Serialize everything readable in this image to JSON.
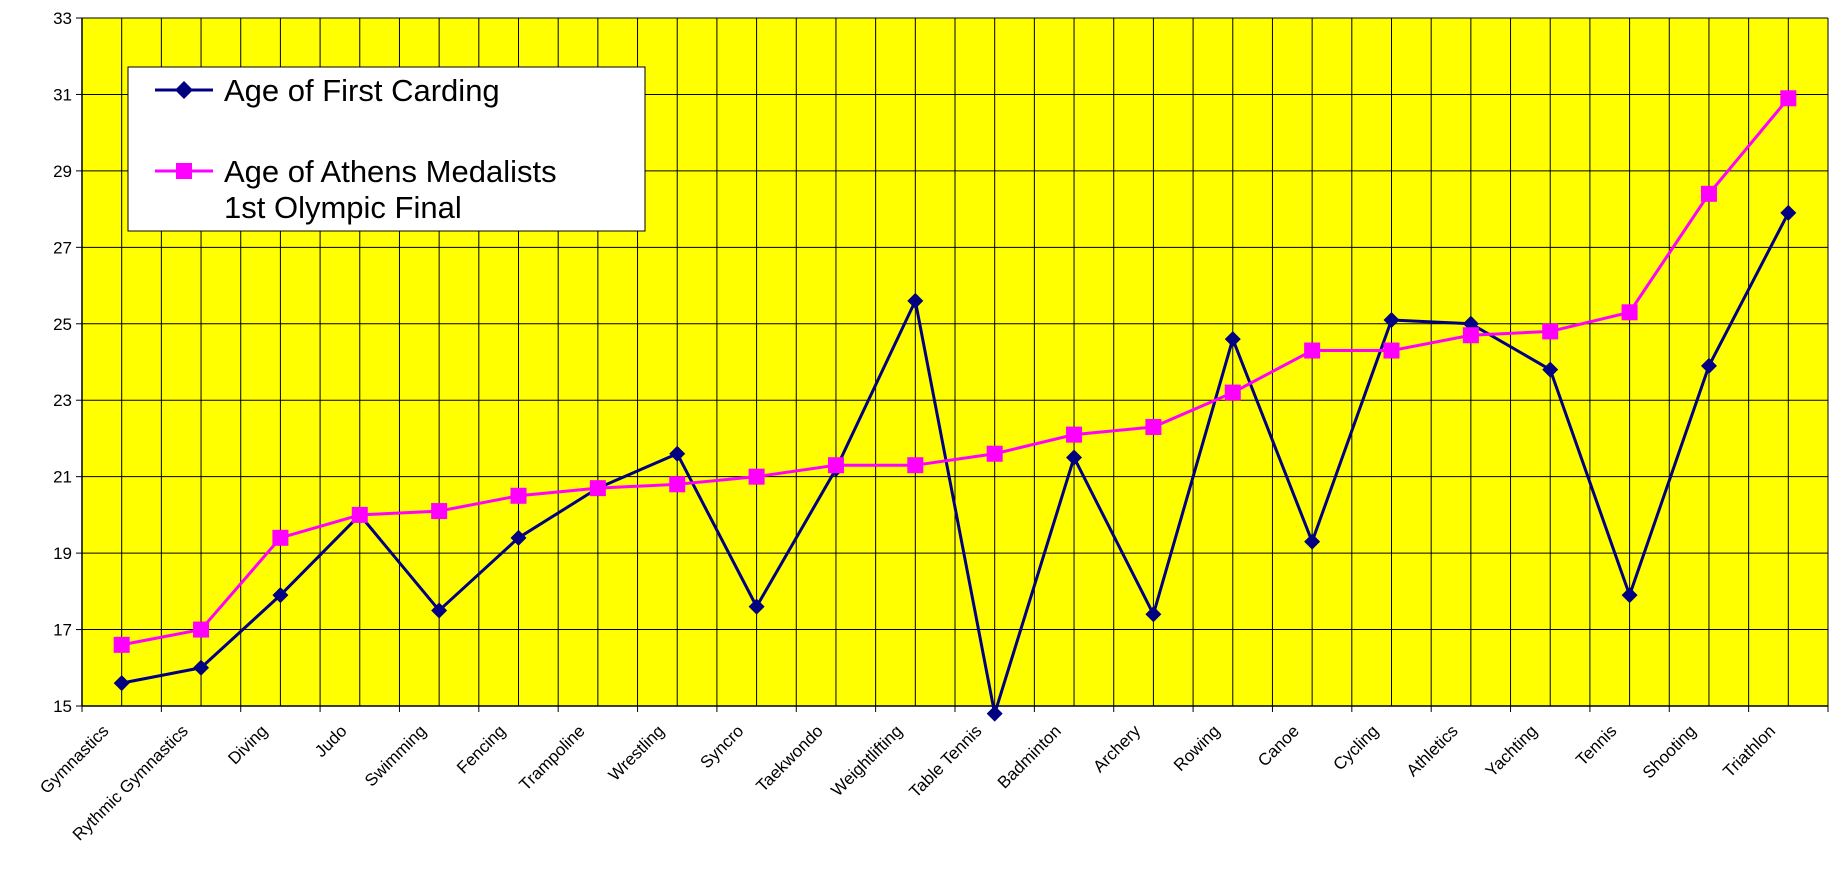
{
  "chart_data": {
    "type": "line",
    "title": "",
    "xlabel": "",
    "ylabel": "",
    "ylim": [
      15,
      33
    ],
    "yticks": [
      15,
      17,
      19,
      21,
      23,
      25,
      27,
      29,
      31,
      33
    ],
    "grid": true,
    "legend_position": "top-left",
    "plot_background": "#FFFF00",
    "categories": [
      "Gymnastics",
      "Rythmic Gymnastics",
      "Diving",
      "Judo",
      "Swimming",
      "Fencing",
      "Trampoline",
      "Wrestling",
      "Syncro",
      "Taekwondo",
      "Weightlifting",
      "Table Tennis",
      "Badminton",
      "Archery",
      "Rowing",
      "Canoe",
      "Cycling",
      "Athletics",
      "Yachting",
      "Tennis",
      "Shooting",
      "Triathlon"
    ],
    "series": [
      {
        "name": "Age of First Carding",
        "color": "#000080",
        "marker": "diamond",
        "values": [
          15.6,
          16.0,
          17.9,
          20.0,
          17.5,
          19.4,
          20.7,
          21.6,
          17.6,
          21.2,
          25.6,
          14.8,
          21.5,
          17.4,
          24.6,
          19.3,
          25.1,
          25.0,
          23.8,
          17.9,
          23.9,
          27.9
        ]
      },
      {
        "name": "Age of Athens Medalists 1st Olympic Final",
        "name_lines": [
          "Age of Athens Medalists",
          "1st Olympic Final"
        ],
        "color": "#FF00FF",
        "marker": "square",
        "values": [
          16.6,
          17.0,
          19.4,
          20.0,
          20.1,
          20.5,
          20.7,
          20.8,
          21.0,
          21.3,
          21.3,
          21.6,
          22.1,
          22.3,
          23.2,
          24.3,
          24.3,
          24.7,
          24.8,
          25.3,
          28.4,
          30.9
        ]
      }
    ]
  }
}
